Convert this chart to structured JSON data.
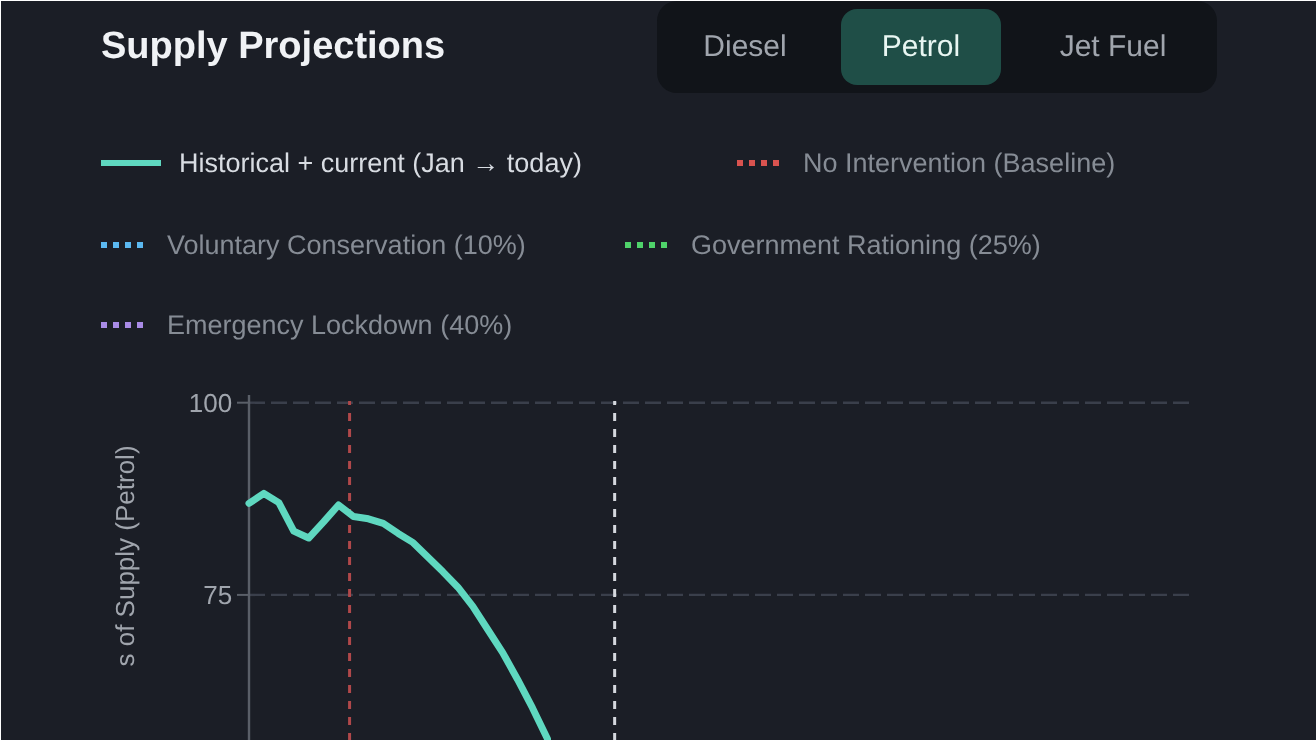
{
  "chart_data": {
    "type": "line",
    "title": "Supply Projections",
    "ylabel": "s of Supply (Petrol)",
    "annotations": [
      "Diesel",
      "Petrol",
      "Jet Fuel"
    ],
    "categories": [
      null,
      null,
      null,
      null,
      null,
      null,
      null,
      null,
      null,
      null,
      null,
      null,
      null,
      null,
      null,
      null,
      null,
      null,
      null,
      null,
      null,
      null,
      null,
      null,
      null,
      null,
      null,
      null,
      null,
      null,
      null,
      null,
      null,
      null,
      null,
      null,
      null,
      null,
      null,
      null,
      null,
      null,
      null,
      null,
      null,
      null,
      null,
      null,
      null,
      null,
      null,
      null,
      null,
      null,
      null,
      null,
      null,
      null,
      null,
      null,
      null,
      null,
      null,
      null
    ],
    "series": [
      {
        "name": "Historical + current (Jan → today)",
        "color": "#5fd8c0",
        "line_style": "solid",
        "values": [
          86.9,
          88.2,
          87.0,
          83.3,
          82.4,
          84.5,
          86.7,
          85.2,
          84.9,
          84.3,
          83.0,
          81.8,
          79.9,
          78.0,
          76.0,
          73.5,
          70.5,
          67.5,
          64.0,
          60.3,
          56.3,
          null,
          null,
          null,
          null,
          null,
          null,
          null,
          null,
          null,
          null,
          null,
          null,
          null,
          null,
          null,
          null,
          null,
          null,
          null,
          null,
          null,
          null,
          null,
          null,
          null,
          null,
          null,
          null,
          null,
          null,
          null,
          null,
          null,
          null,
          null,
          null,
          null,
          null,
          null,
          null,
          null,
          null,
          null
        ]
      },
      {
        "name": "No Intervention (Baseline)",
        "color": "#d9534f",
        "line_style": "dotted",
        "values": [
          null,
          null,
          null,
          null,
          null,
          null,
          null,
          null,
          null,
          null,
          null,
          null,
          null,
          null,
          null,
          null,
          null,
          null,
          null,
          null,
          null,
          null,
          null,
          null,
          null,
          null,
          null,
          null,
          null,
          null,
          null,
          null,
          null,
          null,
          null,
          null,
          null,
          null,
          null,
          null,
          null,
          null,
          null,
          null,
          null,
          null,
          null,
          null,
          null,
          null,
          null,
          null,
          null,
          null,
          null,
          null,
          null,
          null,
          null,
          null,
          null,
          null,
          null,
          null
        ]
      },
      {
        "name": "Voluntary Conservation (10%)",
        "color": "#5bb8f0",
        "line_style": "dotted",
        "values": [
          null,
          null,
          null,
          null,
          null,
          null,
          null,
          null,
          null,
          null,
          null,
          null,
          null,
          null,
          null,
          null,
          null,
          null,
          null,
          null,
          null,
          null,
          null,
          null,
          null,
          null,
          null,
          null,
          null,
          null,
          null,
          null,
          null,
          null,
          null,
          null,
          null,
          null,
          null,
          null,
          null,
          null,
          null,
          null,
          null,
          null,
          null,
          null,
          null,
          null,
          null,
          null,
          null,
          null,
          null,
          null,
          null,
          null,
          null,
          null,
          null,
          null,
          null,
          null
        ]
      },
      {
        "name": "Government Rationing (25%)",
        "color": "#4fd36a",
        "line_style": "dotted",
        "values": [
          null,
          null,
          null,
          null,
          null,
          null,
          null,
          null,
          null,
          null,
          null,
          null,
          null,
          null,
          null,
          null,
          null,
          null,
          null,
          null,
          null,
          null,
          null,
          null,
          null,
          null,
          null,
          null,
          null,
          null,
          null,
          null,
          null,
          null,
          null,
          null,
          null,
          null,
          null,
          null,
          null,
          null,
          null,
          null,
          null,
          null,
          null,
          null,
          null,
          null,
          null,
          null,
          null,
          null,
          null,
          null,
          null,
          null,
          null,
          null,
          null,
          null,
          null,
          null
        ]
      },
      {
        "name": "Emergency Lockdown (40%)",
        "color": "#a98be6",
        "line_style": "dotted",
        "values": [
          null,
          null,
          null,
          null,
          null,
          null,
          null,
          null,
          null,
          null,
          null,
          null,
          null,
          null,
          null,
          null,
          null,
          null,
          null,
          null,
          null,
          null,
          null,
          null,
          null,
          null,
          null,
          null,
          null,
          null,
          null,
          null,
          null,
          null,
          null,
          null,
          null,
          null,
          null,
          null,
          null,
          null,
          null,
          null,
          null,
          null,
          null,
          null,
          null,
          null,
          null,
          null,
          null,
          null,
          null,
          null,
          null,
          null,
          null,
          null,
          null,
          null,
          null,
          null
        ]
      }
    ],
    "ylim": [
      56,
      101
    ],
    "yticks": [
      75,
      100
    ],
    "tick_labels": "y",
    "grid": "y",
    "legend": "top"
  }
}
